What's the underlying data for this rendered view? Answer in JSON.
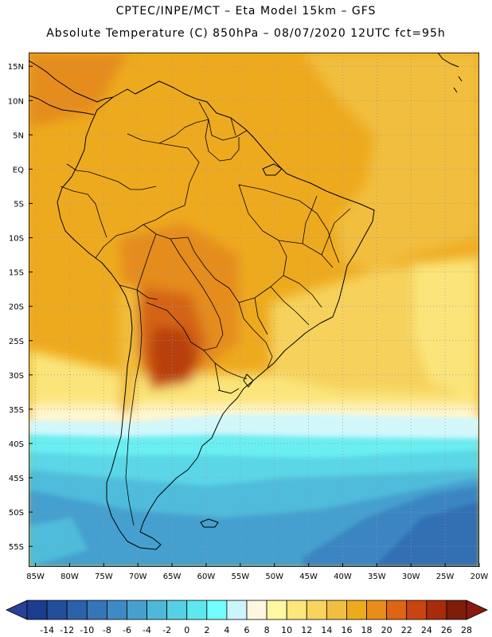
{
  "header": {
    "line1": "CPTEC/INPE/MCT –  Eta Model 15km – GFS",
    "line2": "Absolute Temperature (C) 850hPa – 08/07/2020 12UTC fct=95h"
  },
  "map": {
    "lat_labels": [
      "15N",
      "10N",
      "5N",
      "EQ",
      "5S",
      "10S",
      "15S",
      "20S",
      "25S",
      "30S",
      "35S",
      "40S",
      "45S",
      "50S",
      "55S"
    ],
    "lat_values": [
      15,
      10,
      5,
      0,
      -5,
      -10,
      -15,
      -20,
      -25,
      -30,
      -35,
      -40,
      -45,
      -50,
      -55
    ],
    "lon_labels": [
      "85W",
      "80W",
      "75W",
      "70W",
      "65W",
      "60W",
      "55W",
      "50W",
      "45W",
      "40W",
      "35W",
      "30W",
      "25W",
      "20W"
    ],
    "lon_values": [
      -85,
      -80,
      -75,
      -70,
      -65,
      -60,
      -55,
      -50,
      -45,
      -40,
      -35,
      -30,
      -25,
      -20
    ],
    "extent": {
      "lon_min": -86,
      "lon_max": -20,
      "lat_min": -58,
      "lat_max": 17
    }
  },
  "colorbar": {
    "labels": [
      "-14",
      "-12",
      "-10",
      "-8",
      "-6",
      "-4",
      "-2",
      "0",
      "2",
      "4",
      "6",
      "8",
      "10",
      "12",
      "14",
      "16",
      "18",
      "20",
      "22",
      "24",
      "26",
      "28"
    ],
    "colors": [
      "#1a3d8f",
      "#234e9c",
      "#2b62ab",
      "#3476b8",
      "#3d8ac4",
      "#46a0cf",
      "#4db8d9",
      "#55d0e4",
      "#5ee8ee",
      "#73fdfd",
      "#cdf3fb",
      "#fff6df",
      "#fff8a0",
      "#fbe77a",
      "#f6d45e",
      "#f1bf3f",
      "#edaa1c",
      "#e98d1a",
      "#df6414",
      "#c94410",
      "#a82b0c",
      "#7e1d0a"
    ],
    "under_color": "#2a3f98",
    "over_color": "#8a1a0e"
  },
  "field_colors": {
    "t_m12": "#2a5aa6",
    "t_m10": "#3270b3",
    "t_m8": "#3a86c2",
    "t_m6": "#44a0cf",
    "t_m4": "#4fbcdb",
    "t_m2": "#5ad6e6",
    "t_0": "#6aeef2",
    "t_4": "#d2f7fb",
    "t_8": "#fff7d0",
    "t_10": "#fff2a0",
    "t_12": "#fbe57a",
    "t_14": "#f6d25c",
    "t_16": "#f1be3d",
    "t_18": "#eeaa1e",
    "t_20": "#e58c1c",
    "t_22": "#d46316",
    "t_24": "#b8410f",
    "coast": "#000000",
    "grid": "#9a9a9a"
  }
}
